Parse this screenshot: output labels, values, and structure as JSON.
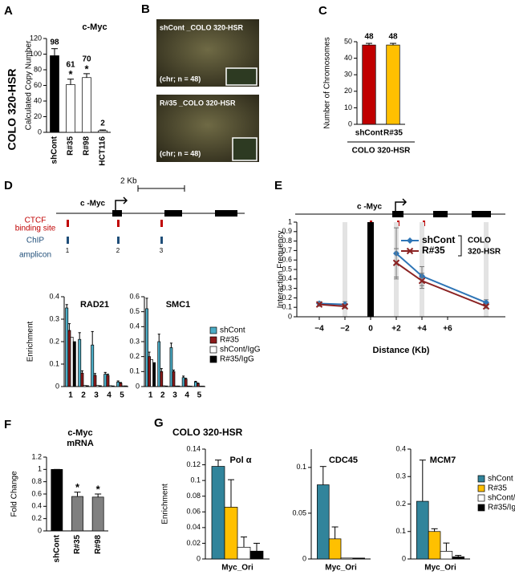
{
  "panels": [
    "A",
    "B",
    "C",
    "D",
    "E",
    "F",
    "G"
  ],
  "images": [
    {
      "label": "shCont _COLO 320-HSR",
      "note": "(chr; n = 48)"
    },
    {
      "label": "R#35 _COLO 320-HSR",
      "note": "(chr; n = 48)"
    }
  ],
  "diagram_d": {
    "scale": "2 Kb",
    "gene": "c -Myc",
    "ctcf_label": [
      "CTCF",
      "binding site"
    ],
    "chip_label": [
      "ChIP",
      "amplicon"
    ],
    "amplicons": [
      "1",
      "2",
      "3"
    ]
  },
  "diagram_e": {
    "gene": "c -Myc"
  },
  "chart_data": [
    {
      "type": "bar",
      "title": "c-Myc",
      "side_label": "COLO 320-HSR",
      "ylabel": "Calculated Copy Number",
      "categories": [
        "shCont",
        "R#35",
        "R#98",
        "HCT116"
      ],
      "values": [
        98,
        61,
        70,
        2
      ],
      "errors": [
        9,
        7,
        5,
        1
      ],
      "colors": [
        "#000000",
        "#ffffff",
        "#ffffff",
        "#ffffff"
      ],
      "ylim": [
        0,
        120
      ],
      "yticks": [
        0,
        20,
        40,
        60,
        80,
        100,
        120
      ],
      "data_labels": true,
      "stars": [
        null,
        "*",
        "*",
        null
      ],
      "rotate_labels": true
    },
    {
      "type": "bar",
      "ylabel": "Number of Chromosomes",
      "xlabel": "COLO 320-HSR",
      "categories": [
        "shCont",
        "R#35"
      ],
      "values": [
        48,
        48
      ],
      "errors": [
        1,
        1
      ],
      "colors": [
        "#c00000",
        "#ffc000"
      ],
      "ylim": [
        0,
        50
      ],
      "yticks": [
        0,
        10,
        20,
        30,
        40,
        50
      ],
      "data_labels": true
    },
    {
      "type": "bar",
      "title": "RAD21",
      "ylabel": "Enrichment",
      "categories": [
        "1",
        "2",
        "3",
        "4",
        "5"
      ],
      "series": [
        {
          "name": "shCont",
          "color": "#4bacc6",
          "values": [
            0.35,
            0.21,
            0.185,
            0.055,
            0.02
          ],
          "errors": [
            0.015,
            0.03,
            0.06,
            0.008,
            0.005
          ]
        },
        {
          "name": "R#35",
          "color": "#8b1a1a",
          "values": [
            0.25,
            0.06,
            0.05,
            0.05,
            0.015
          ],
          "errors": [
            0.03,
            0.01,
            0.008,
            0.005,
            0.003
          ]
        },
        {
          "name": "shCont/IgG",
          "color": "#ffffff",
          "values": [
            0.22,
            0.005,
            0.005,
            0.004,
            0.003
          ]
        },
        {
          "name": "R#35/IgG",
          "color": "#000000",
          "values": [
            0.2,
            0.004,
            0.004,
            0.003,
            0.003
          ]
        }
      ],
      "ylim": [
        0,
        0.4
      ],
      "yticks": [
        0,
        0.1,
        0.2,
        0.3,
        0.4
      ]
    },
    {
      "type": "bar",
      "title": "SMC1",
      "categories": [
        "1",
        "2",
        "3",
        "4",
        "5"
      ],
      "series": [
        {
          "name": "shCont",
          "color": "#4bacc6",
          "values": [
            0.52,
            0.3,
            0.26,
            0.06,
            0.03
          ],
          "errors": [
            0.07,
            0.05,
            0.03,
            0.01,
            0.005
          ]
        },
        {
          "name": "R#35",
          "color": "#8b1a1a",
          "values": [
            0.2,
            0.1,
            0.1,
            0.05,
            0.02
          ],
          "errors": [
            0.03,
            0.02,
            0.01,
            0.005,
            0.003
          ]
        },
        {
          "name": "shCont/IgG",
          "color": "#ffffff",
          "values": [
            0.18,
            0.005,
            0.004,
            0.004,
            0.003
          ]
        },
        {
          "name": "R#35/IgG",
          "color": "#000000",
          "values": [
            0.16,
            0.004,
            0.004,
            0.003,
            0.003
          ]
        }
      ],
      "ylim": [
        0,
        0.6
      ],
      "yticks": [
        0,
        0.1,
        0.2,
        0.3,
        0.4,
        0.5,
        0.6
      ],
      "legend": true
    },
    {
      "type": "line",
      "ylabel": "Interaction Frequency",
      "xlabel": "Distance (Kb)",
      "x": [
        -4,
        -2,
        0,
        2,
        4,
        9
      ],
      "series": [
        {
          "name": "shCont",
          "color": "#2e75b6",
          "values": [
            0.14,
            0.13,
            null,
            0.67,
            0.43,
            0.15
          ],
          "errors": [
            0.02,
            0.03,
            null,
            0.27,
            0.1,
            0.03
          ]
        },
        {
          "name": "R#35",
          "color": "#8b2323",
          "values": [
            0.13,
            0.11,
            null,
            0.57,
            0.38,
            0.11
          ],
          "errors": [
            0.02,
            0.02,
            null,
            0.15,
            0.08,
            0.02
          ]
        }
      ],
      "anchor": {
        "x": 0,
        "value": 1
      },
      "highlight_x": [
        -2,
        2,
        4,
        9
      ],
      "legend_note": [
        "COLO",
        "320-HSR"
      ],
      "xlim": [
        -5.75,
        10.5
      ],
      "xticks": [
        {
          "value": -4,
          "label": "−4"
        },
        {
          "value": -2,
          "label": "−2"
        },
        0,
        {
          "value": 2,
          "label": "+2"
        },
        {
          "value": 4,
          "label": "+4"
        },
        {
          "value": 6,
          "label": "+6"
        }
      ],
      "ylim": [
        0,
        1
      ],
      "yticks": [
        0,
        0.1,
        0.2,
        0.3,
        0.4,
        0.5,
        0.6,
        0.7,
        0.8,
        0.9,
        1
      ],
      "legend": true
    },
    {
      "type": "bar",
      "title": [
        "c-Myc",
        "mRNA"
      ],
      "ylabel": "Fold Change",
      "categories": [
        "shCont",
        "R#35",
        "R#98"
      ],
      "values": [
        1,
        0.56,
        0.55
      ],
      "errors": [
        0,
        0.07,
        0.05
      ],
      "colors": [
        "#000000",
        "#808080",
        "#808080"
      ],
      "ylim": [
        0,
        1.2
      ],
      "yticks": [
        0,
        0.2,
        0.4,
        0.6,
        0.8,
        1,
        1.2
      ],
      "stars": [
        null,
        "*",
        "*"
      ],
      "rotate_labels": true
    },
    {
      "type": "bar",
      "title": "Pol α",
      "heading": "COLO 320-HSR",
      "ylabel": "Enrichment",
      "categories": [
        "Myc_Ori"
      ],
      "series": [
        {
          "name": "shCont",
          "color": "#31849b",
          "values": [
            0.118
          ],
          "errors": [
            0.008
          ]
        },
        {
          "name": "R#35",
          "color": "#ffc000",
          "values": [
            0.066
          ],
          "errors": [
            0.035
          ]
        },
        {
          "name": "shCont/IgG",
          "color": "#ffffff",
          "values": [
            0.015
          ],
          "errors": [
            0.013
          ]
        },
        {
          "name": "R#35/IgG",
          "color": "#000000",
          "values": [
            0.01
          ],
          "errors": [
            0.01
          ]
        }
      ],
      "ylim": [
        0,
        0.14
      ],
      "yticks": [
        0,
        0.02,
        0.04,
        0.06,
        0.08,
        0.1,
        0.12,
        0.14
      ]
    },
    {
      "type": "bar",
      "title": "CDC45",
      "categories": [
        "Myc_Ori"
      ],
      "series": [
        {
          "name": "shCont",
          "color": "#31849b",
          "values": [
            0.081
          ],
          "errors": [
            0.02
          ]
        },
        {
          "name": "R#35",
          "color": "#ffc000",
          "values": [
            0.022
          ],
          "errors": [
            0.013
          ]
        },
        {
          "name": "shCont/IgG",
          "color": "#ffffff",
          "values": [
            0.001
          ]
        },
        {
          "name": "R#35/IgG",
          "color": "#000000",
          "values": [
            0.001
          ]
        }
      ],
      "ylim": [
        0,
        0.12
      ],
      "yticks": [
        0,
        0.05,
        0.1
      ]
    },
    {
      "type": "bar",
      "title": "MCM7",
      "categories": [
        "Myc_Ori"
      ],
      "series": [
        {
          "name": "shCont",
          "color": "#31849b",
          "values": [
            0.21
          ],
          "errors": [
            0.15
          ]
        },
        {
          "name": "R#35",
          "color": "#ffc000",
          "values": [
            0.1
          ],
          "errors": [
            0.01
          ]
        },
        {
          "name": "shCont/IgG",
          "color": "#ffffff",
          "values": [
            0.028
          ],
          "errors": [
            0.03
          ]
        },
        {
          "name": "R#35/IgG",
          "color": "#000000",
          "values": [
            0.008
          ],
          "errors": [
            0.005
          ]
        }
      ],
      "ylim": [
        0,
        0.4
      ],
      "yticks": [
        0,
        0.1,
        0.2,
        0.3,
        0.4
      ],
      "legend": true
    }
  ]
}
